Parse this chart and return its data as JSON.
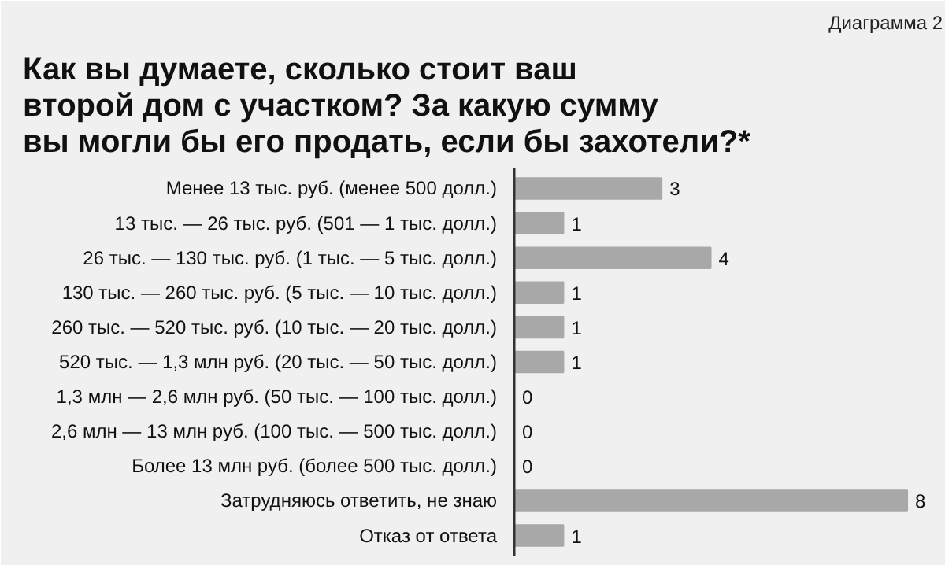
{
  "chart_data": {
    "type": "bar",
    "orientation": "horizontal",
    "title": "Как вы думаете, сколько стоит ваш\nвторой дом с участком? За какую сумму\nвы могли бы его продать, если бы захотели?*",
    "annotations": [
      "Диаграмма 2"
    ],
    "categories": [
      "Менее 13 тыс. руб. (менее 500 долл.)",
      "13 тыс. — 26 тыс. руб. (501 — 1 тыс. долл.)",
      "26 тыс. — 130 тыс. руб. (1 тыс. — 5 тыс. долл.)",
      "130 тыс. — 260 тыс. руб. (5 тыс. — 10 тыс. долл.)",
      "260 тыс. — 520 тыс. руб. (10 тыс. — 20 тыс. долл.)",
      "520 тыс. — 1,3 млн руб. (20 тыс. — 50 тыс. долл.)",
      "1,3 млн — 2,6 млн руб. (50 тыс. — 100 тыс. долл.)",
      "2,6 млн — 13 млн руб. (100 тыс. — 500 тыс. долл.)",
      "Более 13 млн руб. (более 500 тыс. долл.)",
      "Затрудняюсь ответить, не знаю",
      "Отказ от ответа"
    ],
    "values": [
      3,
      1,
      4,
      1,
      1,
      1,
      0,
      0,
      0,
      8,
      1
    ],
    "color": "#a8a8a8",
    "data_labels": true
  }
}
